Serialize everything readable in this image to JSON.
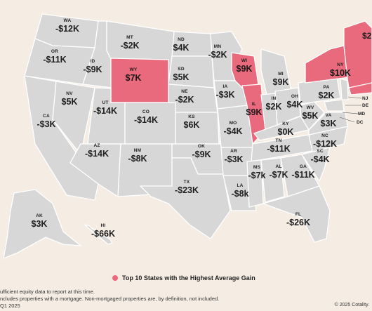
{
  "colors": {
    "base": "#d7d7d7",
    "highlight": "#ea6a7d",
    "border": "#ffffff",
    "background": "#f5ede4"
  },
  "states": [
    {
      "id": "wa",
      "abbr": "WA",
      "value": "-$12K",
      "highlight": false
    },
    {
      "id": "or",
      "abbr": "OR",
      "value": "-$11K",
      "highlight": false
    },
    {
      "id": "id",
      "abbr": "ID",
      "value": "-$9K",
      "highlight": false
    },
    {
      "id": "mt",
      "abbr": "MT",
      "value": "-$2K",
      "highlight": false
    },
    {
      "id": "wy",
      "abbr": "WY",
      "value": "$7K",
      "highlight": true
    },
    {
      "id": "nd",
      "abbr": "ND",
      "value": "$4K",
      "highlight": false
    },
    {
      "id": "sd",
      "abbr": "SD",
      "value": "$5K",
      "highlight": false
    },
    {
      "id": "mn",
      "abbr": "MN",
      "value": "-$2K",
      "highlight": false
    },
    {
      "id": "wi",
      "abbr": "WI",
      "value": "$9K",
      "highlight": true
    },
    {
      "id": "mi",
      "abbr": "MI",
      "value": "$9K",
      "highlight": false
    },
    {
      "id": "ny",
      "abbr": "NY",
      "value": "$10K",
      "highlight": true
    },
    {
      "id": "pa",
      "abbr": "PA",
      "value": "$2K",
      "highlight": false
    },
    {
      "id": "nv",
      "abbr": "NV",
      "value": "$5K",
      "highlight": false
    },
    {
      "id": "ut",
      "abbr": "UT",
      "value": "-$14K",
      "highlight": false
    },
    {
      "id": "co",
      "abbr": "CO",
      "value": "-$14K",
      "highlight": false
    },
    {
      "id": "ne",
      "abbr": "NE",
      "value": "-$2K",
      "highlight": false
    },
    {
      "id": "ia",
      "abbr": "IA",
      "value": "-$3K",
      "highlight": false
    },
    {
      "id": "il",
      "abbr": "IL",
      "value": "$9K",
      "highlight": true
    },
    {
      "id": "in",
      "abbr": "IN",
      "value": "$2K",
      "highlight": false
    },
    {
      "id": "oh",
      "abbr": "OH",
      "value": "$4K",
      "highlight": false
    },
    {
      "id": "wv",
      "abbr": "WV",
      "value": "$5K",
      "highlight": false
    },
    {
      "id": "va",
      "abbr": "VA",
      "value": "$3K",
      "highlight": false
    },
    {
      "id": "ca",
      "abbr": "CA",
      "value": "-$3K",
      "highlight": false
    },
    {
      "id": "ks",
      "abbr": "KS",
      "value": "$6K",
      "highlight": false
    },
    {
      "id": "mo",
      "abbr": "MO",
      "value": "-$4K",
      "highlight": false
    },
    {
      "id": "ky",
      "abbr": "KY",
      "value": "$0K",
      "highlight": false
    },
    {
      "id": "nc",
      "abbr": "NC",
      "value": "-$12K",
      "highlight": false
    },
    {
      "id": "tn",
      "abbr": "TN",
      "value": "-$11K",
      "highlight": false
    },
    {
      "id": "az",
      "abbr": "AZ",
      "value": "-$14K",
      "highlight": false
    },
    {
      "id": "nm",
      "abbr": "NM",
      "value": "-$8K",
      "highlight": false
    },
    {
      "id": "ok",
      "abbr": "OK",
      "value": "-$9K",
      "highlight": false
    },
    {
      "id": "ar",
      "abbr": "AR",
      "value": "-$3K",
      "highlight": false
    },
    {
      "id": "sc",
      "abbr": "SC",
      "value": "-$4K",
      "highlight": false
    },
    {
      "id": "ms",
      "abbr": "MS",
      "value": "-$7k",
      "highlight": false
    },
    {
      "id": "al",
      "abbr": "AL",
      "value": "-$7K",
      "highlight": false
    },
    {
      "id": "ga",
      "abbr": "GA",
      "value": "-$11K",
      "highlight": false
    },
    {
      "id": "tx",
      "abbr": "TX",
      "value": "-$23K",
      "highlight": false
    },
    {
      "id": "la",
      "abbr": "LA",
      "value": "-$8k",
      "highlight": false
    },
    {
      "id": "fl",
      "abbr": "FL",
      "value": "-$26K",
      "highlight": false
    },
    {
      "id": "ak",
      "abbr": "AK",
      "value": "$3K",
      "highlight": false
    },
    {
      "id": "hi",
      "abbr": "HI",
      "value": "-$66K",
      "highlight": false
    }
  ],
  "side_labels": [
    {
      "id": "nj",
      "abbr": "NJ"
    },
    {
      "id": "de",
      "abbr": "DE"
    },
    {
      "id": "md",
      "abbr": "MD"
    },
    {
      "id": "dc",
      "abbr": "DC"
    }
  ],
  "partial_value": "$2",
  "legend": {
    "label": "Top 10 States with the Highest Average Gain"
  },
  "notes": [
    "ufficient equity data to report at this time.",
    "ncludes properties with a mortgage. Non-mortgaged properties are, by definition, not included.",
    "Q1 2025"
  ],
  "copyright": "© 2025 Cotality."
}
